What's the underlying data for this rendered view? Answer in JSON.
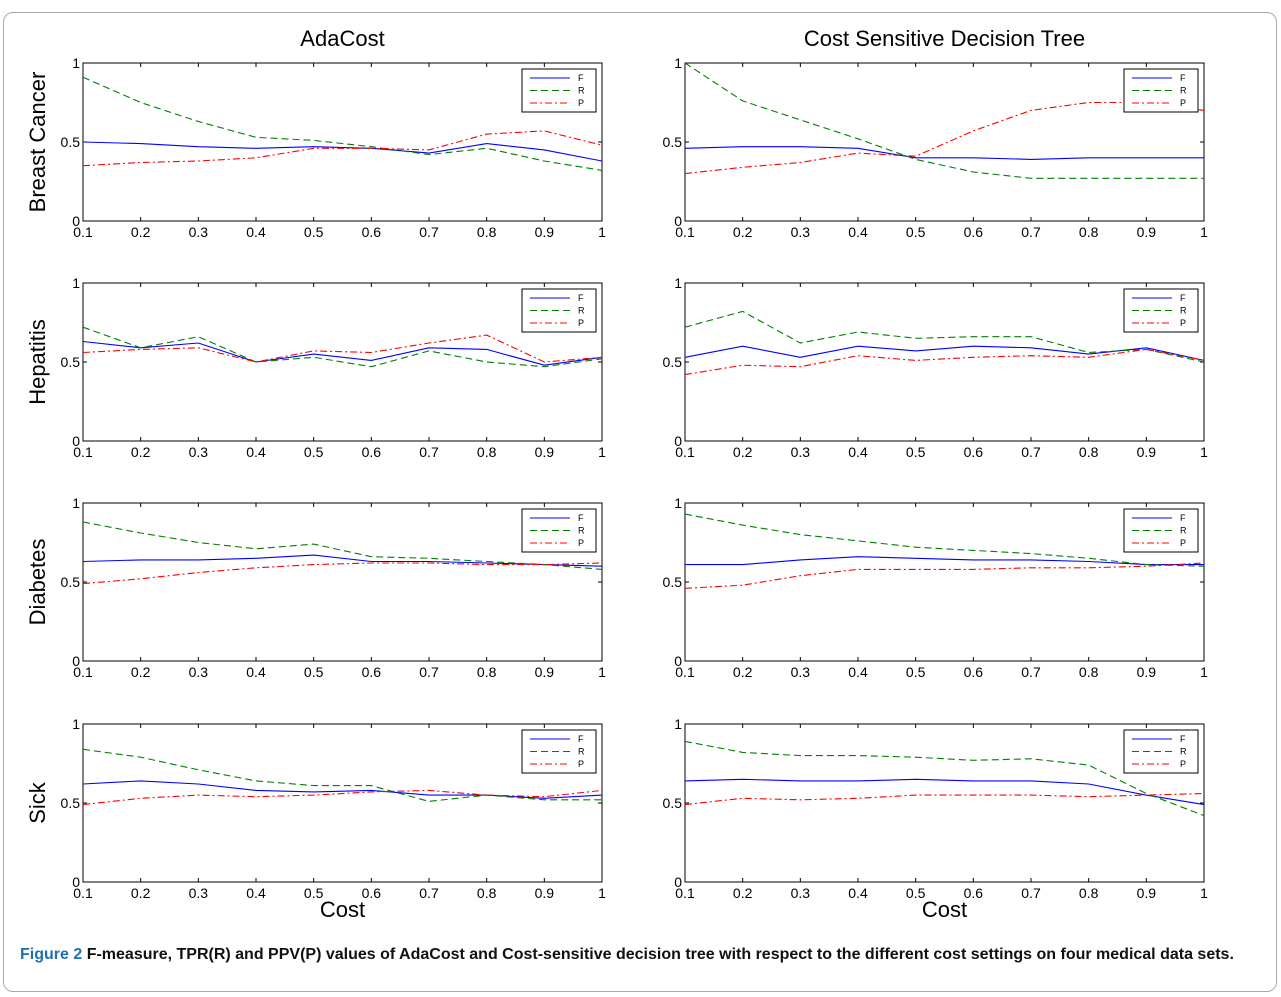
{
  "figure": {
    "label": "Figure 2",
    "caption": "F-measure, TPR(R) and PPV(P) values of AdaCost and Cost-sensitive decision tree with respect to the different cost settings on four medical data sets."
  },
  "colors": {
    "F": "#0000ff",
    "R": "#008000",
    "P": "#ff0000",
    "frame": "#a9a9a9"
  },
  "chart_data": [
    {
      "type": "line",
      "column_title": "AdaCost",
      "row_label": "Breast Cancer",
      "xlabel": "",
      "x": [
        0.1,
        0.2,
        0.3,
        0.4,
        0.5,
        0.6,
        0.7,
        0.8,
        0.9,
        1
      ],
      "xticks": [
        "0.1",
        "0.2",
        "0.3",
        "0.4",
        "0.5",
        "0.6",
        "0.7",
        "0.8",
        "0.9",
        "1"
      ],
      "yticks": [
        "0",
        "0.5",
        "1"
      ],
      "ylim": [
        0,
        1
      ],
      "legend": "top-right",
      "series": [
        {
          "name": "F",
          "style": "solid",
          "values": [
            0.5,
            0.49,
            0.47,
            0.46,
            0.47,
            0.46,
            0.43,
            0.49,
            0.45,
            0.38
          ]
        },
        {
          "name": "R",
          "style": "dashed",
          "values": [
            0.91,
            0.75,
            0.63,
            0.53,
            0.51,
            0.47,
            0.42,
            0.46,
            0.38,
            0.32
          ]
        },
        {
          "name": "P",
          "style": "dashdot",
          "values": [
            0.35,
            0.37,
            0.38,
            0.4,
            0.46,
            0.46,
            0.45,
            0.55,
            0.57,
            0.48
          ]
        }
      ]
    },
    {
      "type": "line",
      "column_title": "Cost Sensitive Decision Tree",
      "row_label": "",
      "xlabel": "",
      "x": [
        0.1,
        0.2,
        0.3,
        0.4,
        0.5,
        0.6,
        0.7,
        0.8,
        0.9,
        1
      ],
      "xticks": [
        "0.1",
        "0.2",
        "0.3",
        "0.4",
        "0.5",
        "0.6",
        "0.7",
        "0.8",
        "0.9",
        "1"
      ],
      "yticks": [
        "0",
        "0.5",
        "1"
      ],
      "ylim": [
        0,
        1
      ],
      "legend": "top-right",
      "series": [
        {
          "name": "F",
          "style": "solid",
          "values": [
            0.46,
            0.47,
            0.47,
            0.46,
            0.4,
            0.4,
            0.39,
            0.4,
            0.4,
            0.4
          ]
        },
        {
          "name": "R",
          "style": "dashed",
          "values": [
            1.0,
            0.76,
            0.64,
            0.52,
            0.39,
            0.31,
            0.27,
            0.27,
            0.27,
            0.27
          ]
        },
        {
          "name": "P",
          "style": "dashdot",
          "values": [
            0.3,
            0.34,
            0.37,
            0.43,
            0.41,
            0.57,
            0.7,
            0.75,
            0.75,
            0.7
          ]
        }
      ]
    },
    {
      "type": "line",
      "column_title": "",
      "row_label": "Hepatitis",
      "xlabel": "",
      "x": [
        0.1,
        0.2,
        0.3,
        0.4,
        0.5,
        0.6,
        0.7,
        0.8,
        0.9,
        1
      ],
      "xticks": [
        "0.1",
        "0.2",
        "0.3",
        "0.4",
        "0.5",
        "0.6",
        "0.7",
        "0.8",
        "0.9",
        "1"
      ],
      "yticks": [
        "0",
        "0.5",
        "1"
      ],
      "ylim": [
        0,
        1
      ],
      "legend": "top-right",
      "series": [
        {
          "name": "F",
          "style": "solid",
          "values": [
            0.63,
            0.59,
            0.62,
            0.5,
            0.55,
            0.51,
            0.59,
            0.58,
            0.48,
            0.53
          ]
        },
        {
          "name": "R",
          "style": "dashed",
          "values": [
            0.72,
            0.59,
            0.66,
            0.5,
            0.53,
            0.47,
            0.57,
            0.5,
            0.47,
            0.52
          ]
        },
        {
          "name": "P",
          "style": "dashdot",
          "values": [
            0.56,
            0.58,
            0.59,
            0.5,
            0.57,
            0.56,
            0.62,
            0.67,
            0.5,
            0.53
          ]
        }
      ]
    },
    {
      "type": "line",
      "column_title": "",
      "row_label": "",
      "xlabel": "",
      "x": [
        0.1,
        0.2,
        0.3,
        0.4,
        0.5,
        0.6,
        0.7,
        0.8,
        0.9,
        1
      ],
      "xticks": [
        "0.1",
        "0.2",
        "0.3",
        "0.4",
        "0.5",
        "0.6",
        "0.7",
        "0.8",
        "0.9",
        "1"
      ],
      "yticks": [
        "0",
        "0.5",
        "1"
      ],
      "ylim": [
        0,
        1
      ],
      "legend": "top-right",
      "series": [
        {
          "name": "F",
          "style": "solid",
          "values": [
            0.53,
            0.6,
            0.53,
            0.6,
            0.57,
            0.6,
            0.59,
            0.55,
            0.59,
            0.51
          ]
        },
        {
          "name": "R",
          "style": "dashed",
          "values": [
            0.72,
            0.82,
            0.62,
            0.69,
            0.65,
            0.66,
            0.66,
            0.56,
            0.58,
            0.5
          ]
        },
        {
          "name": "P",
          "style": "dashdot",
          "values": [
            0.42,
            0.48,
            0.47,
            0.54,
            0.51,
            0.53,
            0.54,
            0.53,
            0.58,
            0.51
          ]
        }
      ]
    },
    {
      "type": "line",
      "column_title": "",
      "row_label": "Diabetes",
      "xlabel": "",
      "x": [
        0.1,
        0.2,
        0.3,
        0.4,
        0.5,
        0.6,
        0.7,
        0.8,
        0.9,
        1
      ],
      "xticks": [
        "0.1",
        "0.2",
        "0.3",
        "0.4",
        "0.5",
        "0.6",
        "0.7",
        "0.8",
        "0.9",
        "1"
      ],
      "yticks": [
        "0",
        "0.5",
        "1"
      ],
      "ylim": [
        0,
        1
      ],
      "legend": "top-right",
      "series": [
        {
          "name": "F",
          "style": "solid",
          "values": [
            0.63,
            0.64,
            0.64,
            0.65,
            0.67,
            0.63,
            0.63,
            0.62,
            0.61,
            0.6
          ]
        },
        {
          "name": "R",
          "style": "dashed",
          "values": [
            0.88,
            0.81,
            0.75,
            0.71,
            0.74,
            0.66,
            0.65,
            0.63,
            0.61,
            0.58
          ]
        },
        {
          "name": "P",
          "style": "dashdot",
          "values": [
            0.49,
            0.52,
            0.56,
            0.59,
            0.61,
            0.62,
            0.62,
            0.61,
            0.61,
            0.62
          ]
        }
      ]
    },
    {
      "type": "line",
      "column_title": "",
      "row_label": "",
      "xlabel": "",
      "x": [
        0.1,
        0.2,
        0.3,
        0.4,
        0.5,
        0.6,
        0.7,
        0.8,
        0.9,
        1
      ],
      "xticks": [
        "0.1",
        "0.2",
        "0.3",
        "0.4",
        "0.5",
        "0.6",
        "0.7",
        "0.8",
        "0.9",
        "1"
      ],
      "yticks": [
        "0",
        "0.5",
        "1"
      ],
      "ylim": [
        0,
        1
      ],
      "legend": "top-right",
      "series": [
        {
          "name": "F",
          "style": "solid",
          "values": [
            0.61,
            0.61,
            0.64,
            0.66,
            0.65,
            0.64,
            0.64,
            0.63,
            0.61,
            0.61
          ]
        },
        {
          "name": "R",
          "style": "dashed",
          "values": [
            0.93,
            0.86,
            0.8,
            0.76,
            0.72,
            0.7,
            0.68,
            0.65,
            0.61,
            0.6
          ]
        },
        {
          "name": "P",
          "style": "dashdot",
          "values": [
            0.46,
            0.48,
            0.54,
            0.58,
            0.58,
            0.58,
            0.59,
            0.59,
            0.6,
            0.62
          ]
        }
      ]
    },
    {
      "type": "line",
      "column_title": "",
      "row_label": "Sick",
      "xlabel": "Cost",
      "x": [
        0.1,
        0.2,
        0.3,
        0.4,
        0.5,
        0.6,
        0.7,
        0.8,
        0.9,
        1
      ],
      "xticks": [
        "0.1",
        "0.2",
        "0.3",
        "0.4",
        "0.5",
        "0.6",
        "0.7",
        "0.8",
        "0.9",
        "1"
      ],
      "yticks": [
        "0",
        "0.5",
        "1"
      ],
      "ylim": [
        0,
        1
      ],
      "legend": "top-right",
      "series": [
        {
          "name": "F",
          "style": "solid",
          "values": [
            0.62,
            0.64,
            0.62,
            0.58,
            0.57,
            0.58,
            0.55,
            0.55,
            0.53,
            0.55
          ]
        },
        {
          "name": "R",
          "style": "dashed",
          "values": [
            0.84,
            0.79,
            0.71,
            0.64,
            0.61,
            0.61,
            0.51,
            0.55,
            0.52,
            0.52
          ]
        },
        {
          "name": "P",
          "style": "dashdot",
          "values": [
            0.49,
            0.53,
            0.55,
            0.54,
            0.55,
            0.57,
            0.58,
            0.55,
            0.54,
            0.58
          ]
        }
      ]
    },
    {
      "type": "line",
      "column_title": "",
      "row_label": "",
      "xlabel": "Cost",
      "x": [
        0.1,
        0.2,
        0.3,
        0.4,
        0.5,
        0.6,
        0.7,
        0.8,
        0.9,
        1
      ],
      "xticks": [
        "0.1",
        "0.2",
        "0.3",
        "0.4",
        "0.5",
        "0.6",
        "0.7",
        "0.8",
        "0.9",
        "1"
      ],
      "yticks": [
        "0",
        "0.5",
        "1"
      ],
      "ylim": [
        0,
        1
      ],
      "legend": "top-right",
      "series": [
        {
          "name": "F",
          "style": "solid",
          "values": [
            0.64,
            0.65,
            0.64,
            0.64,
            0.65,
            0.64,
            0.64,
            0.62,
            0.55,
            0.49
          ]
        },
        {
          "name": "R",
          "style": "dashed",
          "values": [
            0.89,
            0.82,
            0.8,
            0.8,
            0.79,
            0.77,
            0.78,
            0.74,
            0.56,
            0.42
          ]
        },
        {
          "name": "P",
          "style": "dashdot",
          "values": [
            0.49,
            0.53,
            0.52,
            0.53,
            0.55,
            0.55,
            0.55,
            0.54,
            0.55,
            0.56
          ]
        }
      ]
    }
  ]
}
